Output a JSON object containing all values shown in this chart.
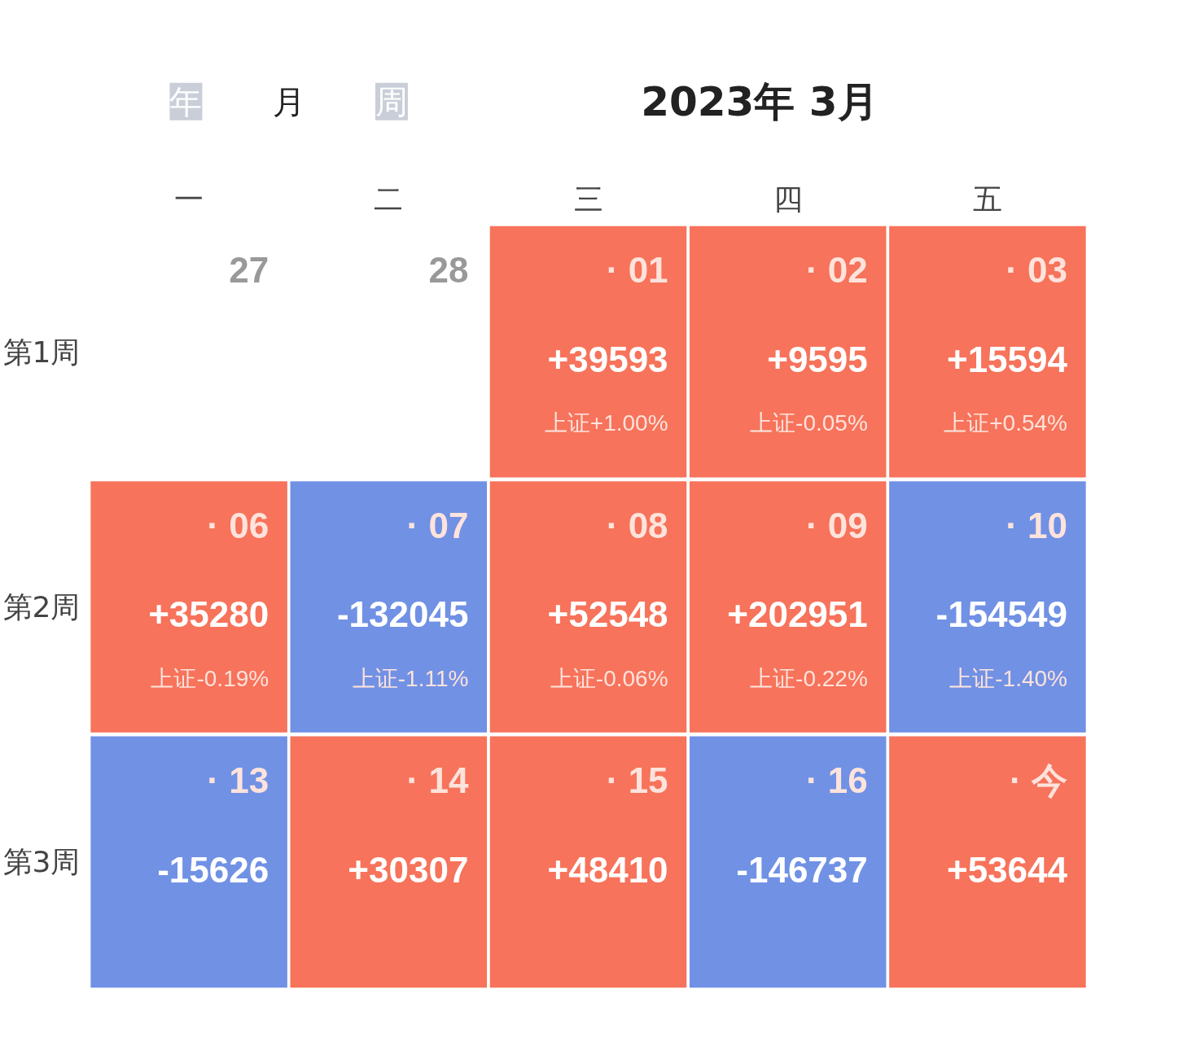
{
  "chart_data": {
    "type": "heatmap",
    "title": "2023年 3月",
    "annotations": [
      "年",
      "月",
      "周",
      "27",
      "28",
      "· 01\n上证+1.00%",
      "· 02\n上证-0.05%",
      "· 03\n上证+0.54%",
      "· 06\n上证-0.19%",
      "· 07\n上证-1.11%",
      "· 08\n上证-0.06%",
      "· 09\n上证-0.22%",
      "· 10\n上证-1.40%",
      "· 13",
      "· 14",
      "· 15",
      "· 16",
      "· 今"
    ],
    "categories": [
      "一",
      "二",
      "三",
      "四",
      "五"
    ],
    "y_categories": [
      "第1周",
      "第2周",
      "第3周"
    ],
    "cells": [
      [
        null,
        null,
        39593,
        9595,
        15594
      ],
      [
        35280,
        -132045,
        52548,
        202951,
        -154549
      ],
      [
        -15626,
        30307,
        48410,
        -146737,
        53644
      ]
    ],
    "cell_labels": [
      [
        null,
        null,
        "+39593",
        "+9595",
        "+15594"
      ],
      [
        "+35280",
        "-132045",
        "+52548",
        "+202951",
        "-154549"
      ],
      [
        "-15626",
        "+30307",
        "+48410",
        "-146737",
        "+53644"
      ]
    ],
    "colors": [
      [
        null,
        null,
        "#f7735b",
        "#f7735b",
        "#f7735b"
      ],
      [
        "#f7735b",
        "#7191e5",
        "#f7735b",
        "#f7735b",
        "#7191e5"
      ],
      [
        "#7191e5",
        "#f7735b",
        "#f7735b",
        "#7191e5",
        "#f7735b"
      ]
    ]
  }
}
